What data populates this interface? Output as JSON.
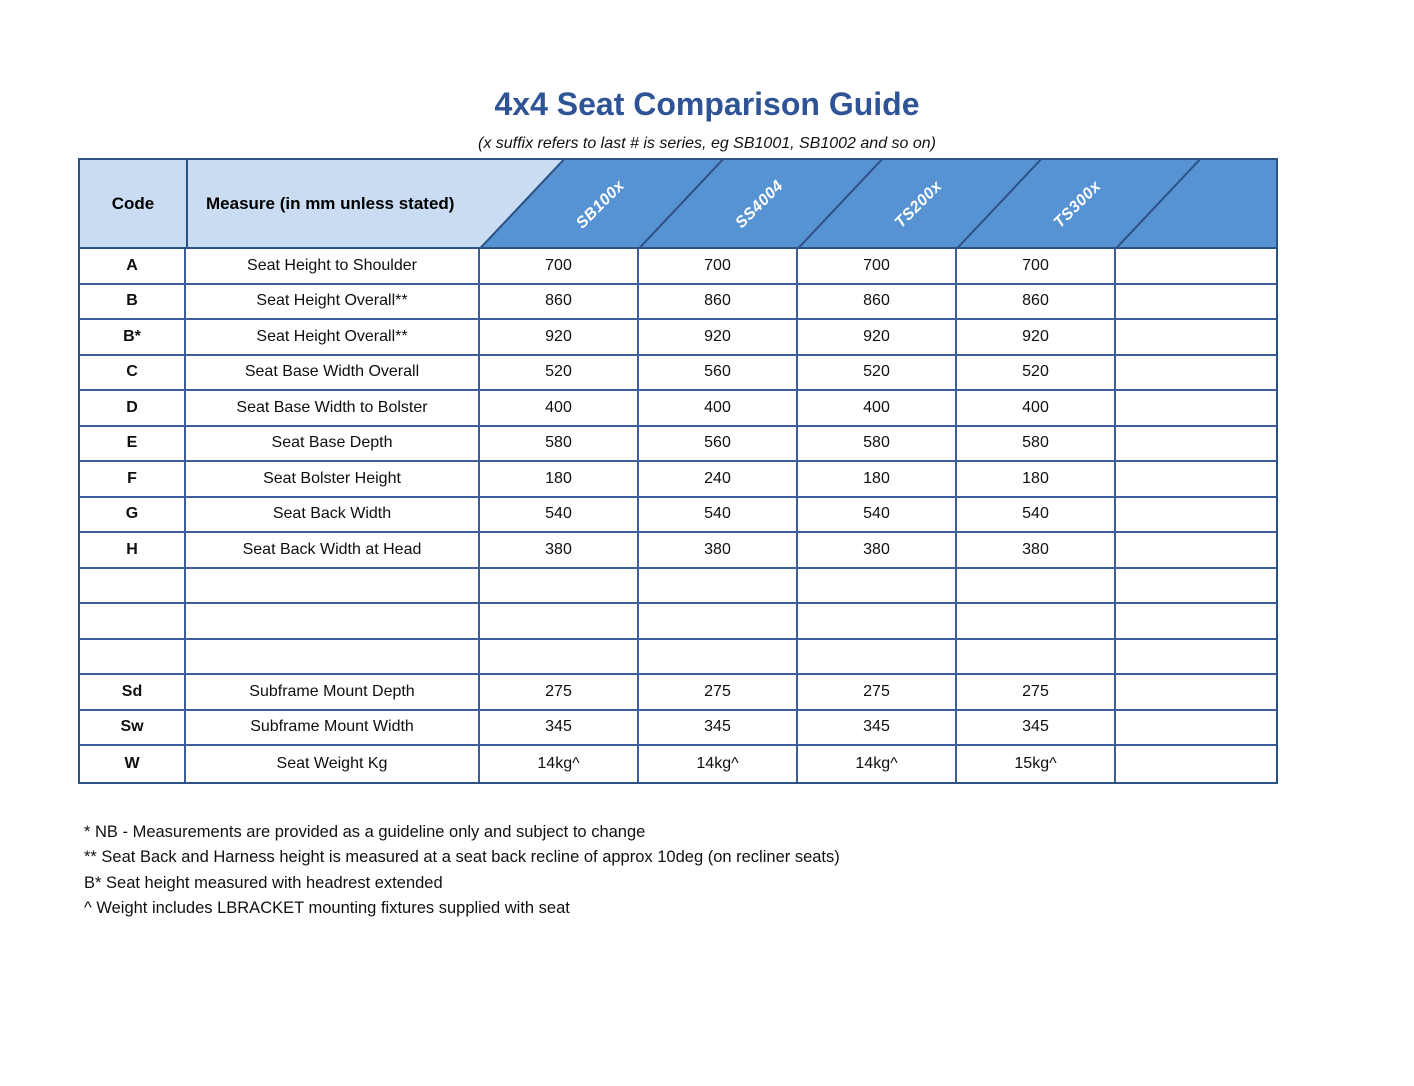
{
  "title": "4x4 Seat Comparison Guide",
  "subtitle": "(x suffix refers to last # is series, eg SB1001, SB1002 and so on)",
  "colors": {
    "title_blue": "#2f5496",
    "header_light_blue": "#c9dcf1",
    "header_dark_blue": "#5793d2",
    "header_border": "#2b5185",
    "grid_border": "#3c5e99"
  },
  "table": {
    "code_header": "Code",
    "measure_header": "Measure (in mm unless stated)",
    "products": [
      "SB100x",
      "SS4004",
      "TS200x",
      "TS300x"
    ],
    "rows": [
      {
        "code": "A",
        "measure": "Seat Height to Shoulder",
        "values": [
          "700",
          "700",
          "700",
          "700",
          ""
        ]
      },
      {
        "code": "B",
        "measure": "Seat Height Overall**",
        "values": [
          "860",
          "860",
          "860",
          "860",
          ""
        ]
      },
      {
        "code": "B*",
        "measure": "Seat Height Overall**",
        "values": [
          "920",
          "920",
          "920",
          "920",
          ""
        ]
      },
      {
        "code": "C",
        "measure": "Seat Base Width Overall",
        "values": [
          "520",
          "560",
          "520",
          "520",
          ""
        ]
      },
      {
        "code": "D",
        "measure": "Seat Base Width to Bolster",
        "values": [
          "400",
          "400",
          "400",
          "400",
          ""
        ]
      },
      {
        "code": "E",
        "measure": "Seat Base Depth",
        "values": [
          "580",
          "560",
          "580",
          "580",
          ""
        ]
      },
      {
        "code": "F",
        "measure": "Seat Bolster Height",
        "values": [
          "180",
          "240",
          "180",
          "180",
          ""
        ]
      },
      {
        "code": "G",
        "measure": "Seat Back Width",
        "values": [
          "540",
          "540",
          "540",
          "540",
          ""
        ]
      },
      {
        "code": "H",
        "measure": "Seat Back Width at Head",
        "values": [
          "380",
          "380",
          "380",
          "380",
          ""
        ]
      },
      {
        "code": "",
        "measure": "",
        "values": [
          "",
          "",
          "",
          "",
          ""
        ]
      },
      {
        "code": "",
        "measure": "",
        "values": [
          "",
          "",
          "",
          "",
          ""
        ]
      },
      {
        "code": "",
        "measure": "",
        "values": [
          "",
          "",
          "",
          "",
          ""
        ]
      },
      {
        "code": "Sd",
        "measure": "Subframe Mount Depth",
        "values": [
          "275",
          "275",
          "275",
          "275",
          ""
        ]
      },
      {
        "code": "Sw",
        "measure": "Subframe Mount Width",
        "values": [
          "345",
          "345",
          "345",
          "345",
          ""
        ]
      },
      {
        "code": "W",
        "measure": "Seat Weight Kg",
        "values": [
          "14kg^",
          "14kg^",
          "14kg^",
          "15kg^",
          ""
        ]
      }
    ]
  },
  "footnotes": [
    "* NB - Measurements are provided as a guideline only and subject to change",
    "** Seat Back and Harness height is measured at a seat back recline of approx 10deg (on recliner seats)",
    "B* Seat height measured with headrest extended",
    "^ Weight includes LBRACKET mounting fixtures supplied with seat"
  ]
}
